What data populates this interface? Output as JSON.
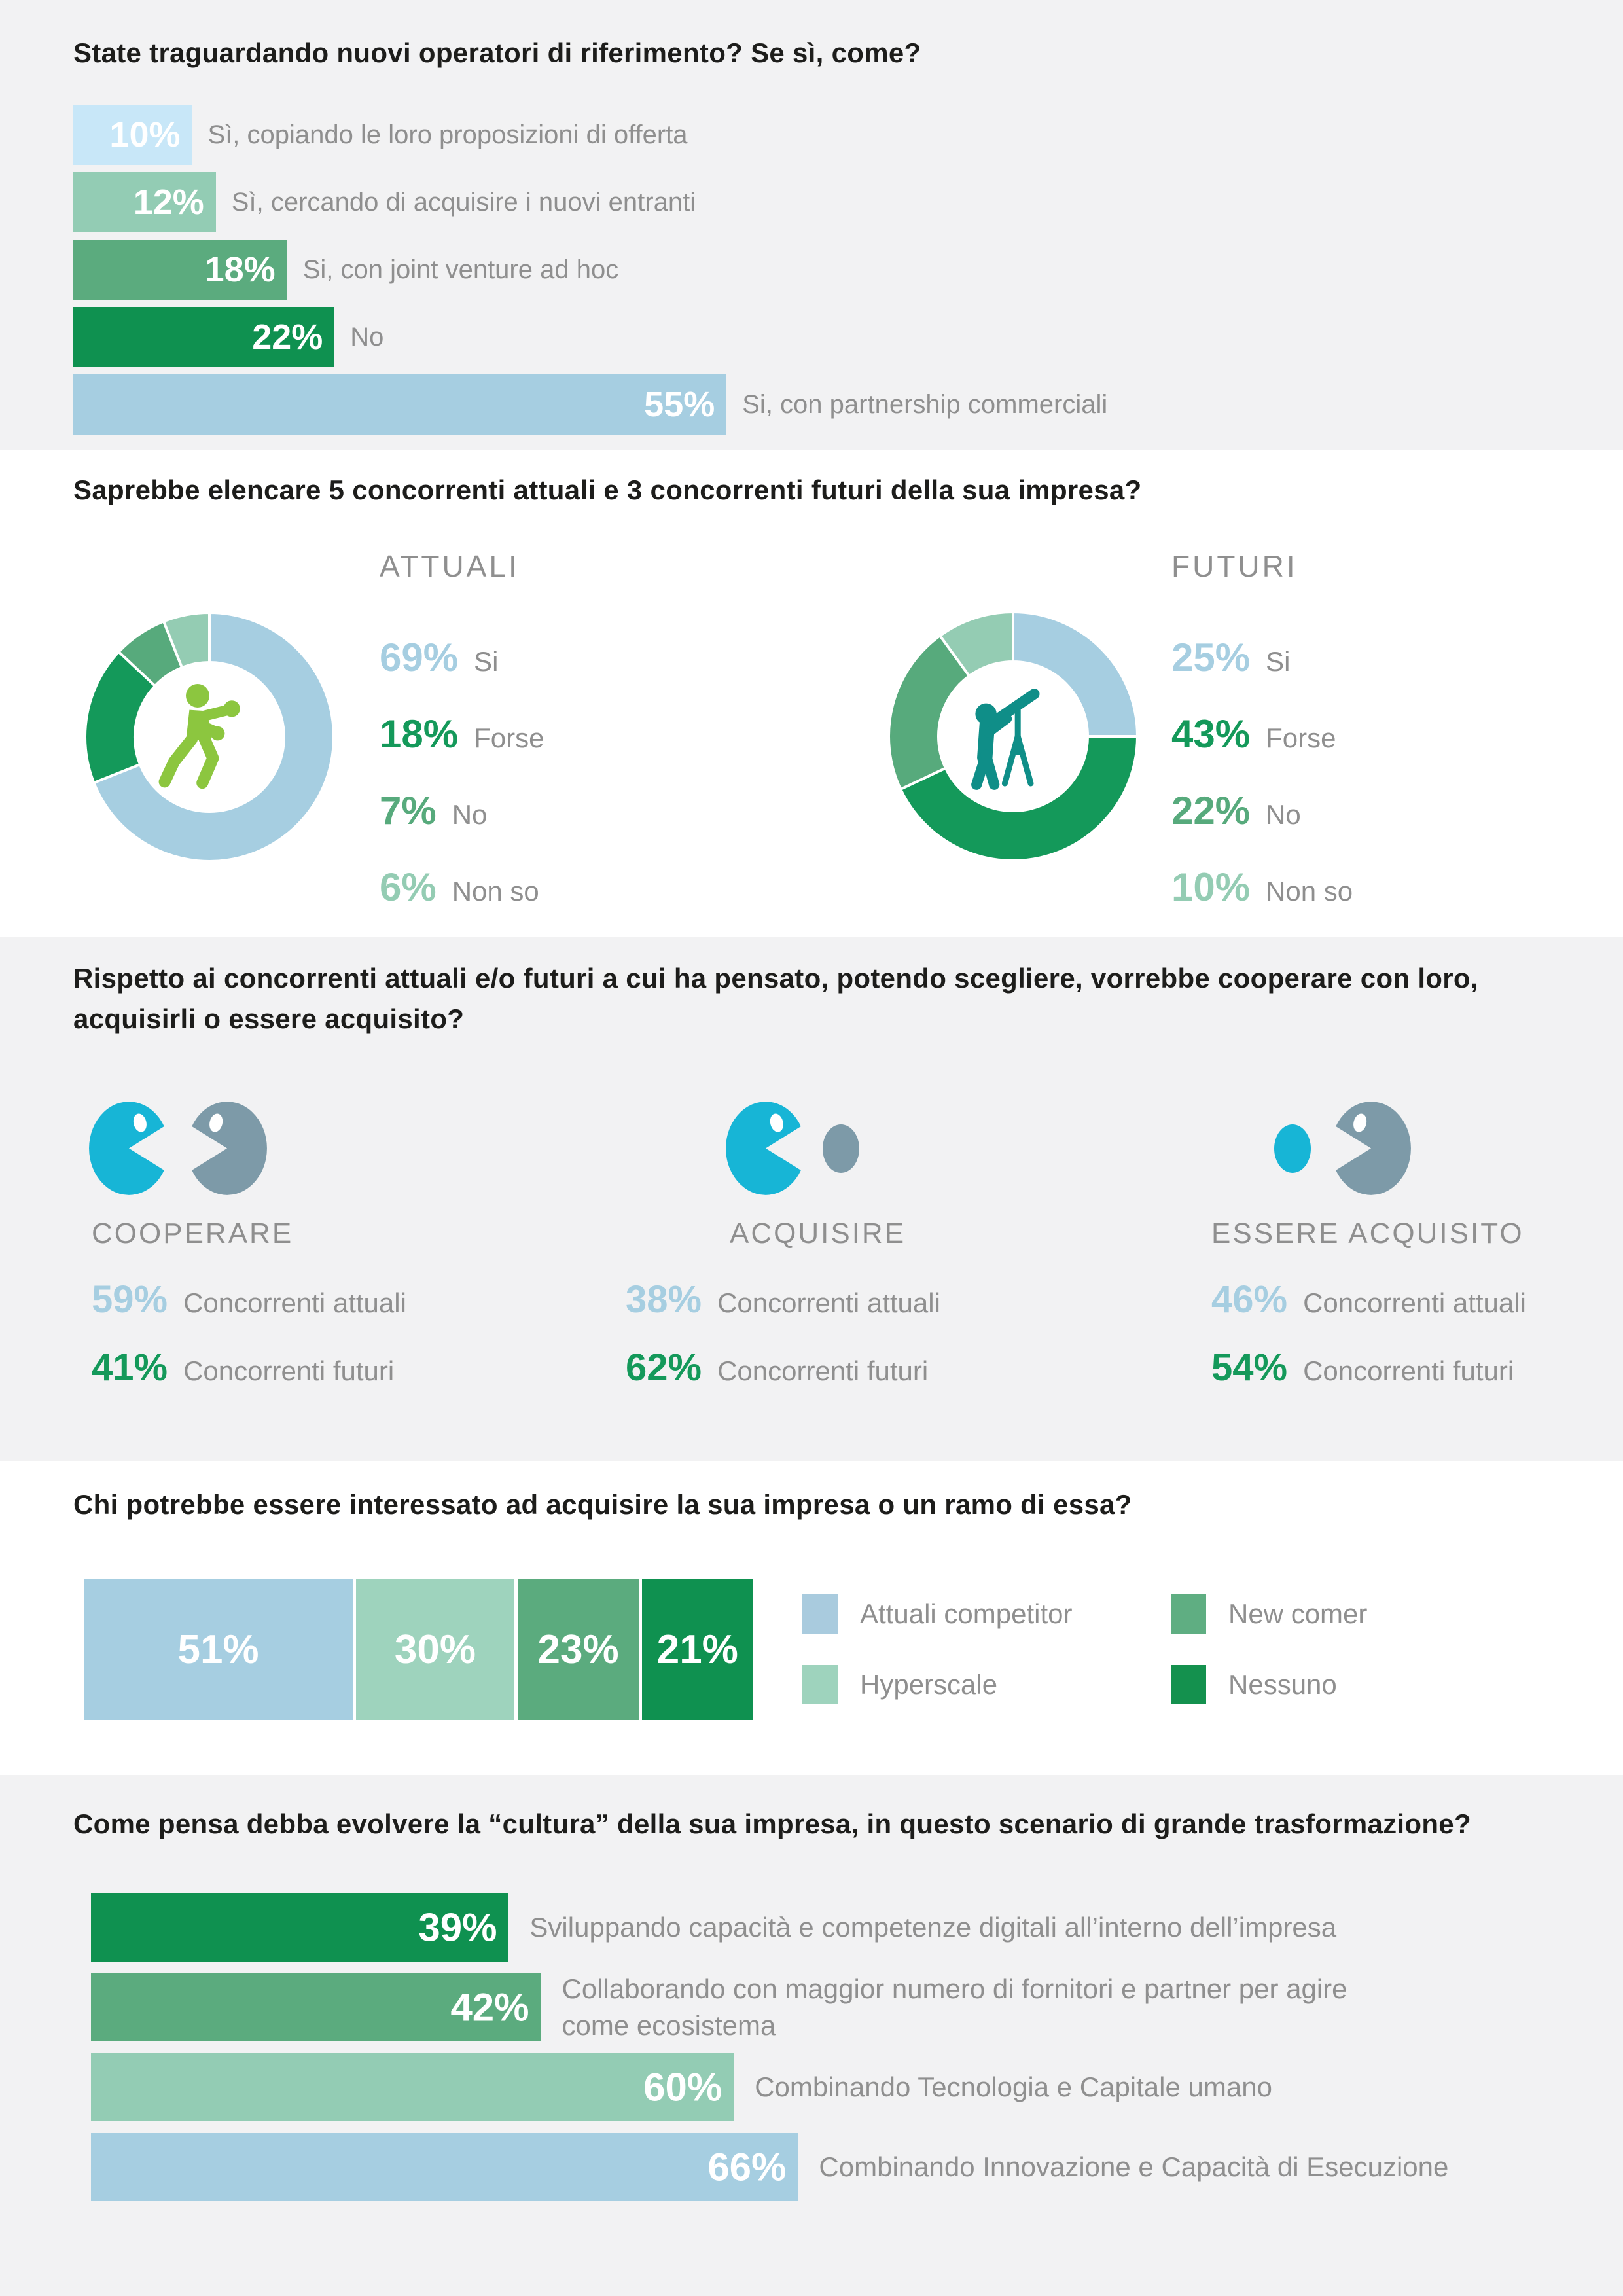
{
  "s1": {
    "title": "State traguardando nuovi operatori di riferimento? Se sì, come?",
    "bars": [
      {
        "value": 10,
        "label": "Sì, copiando le loro proposizioni di offerta",
        "color": "#c8e7f8"
      },
      {
        "value": 12,
        "label": "Sì, cercando di acquisire i nuovi entranti",
        "color": "#93ccb4"
      },
      {
        "value": 18,
        "label": "Si, con joint venture ad hoc",
        "color": "#5bab7e"
      },
      {
        "value": 22,
        "label": "No",
        "color": "#0f9150"
      },
      {
        "value": 55,
        "label": "Si, con partnership commerciali",
        "color": "#a6cee1"
      }
    ]
  },
  "s2": {
    "title": "Saprebbe elencare 5 concorrenti attuali e 3 concorrenti futuri della sua impresa?",
    "donuts": [
      {
        "name": "ATTUALI",
        "icon": "boxer-icon",
        "segments": [
          {
            "value": 69,
            "label": "Si",
            "color": "#a6cee1"
          },
          {
            "value": 18,
            "label": "Forse",
            "color": "#14995a"
          },
          {
            "value": 7,
            "label": "No",
            "color": "#57aa7c"
          },
          {
            "value": 6,
            "label": "Non so",
            "color": "#94ccb3"
          }
        ]
      },
      {
        "name": "FUTURI",
        "icon": "telescope-icon",
        "segments": [
          {
            "value": 25,
            "label": "Si",
            "color": "#a6cee1"
          },
          {
            "value": 43,
            "label": "Forse",
            "color": "#14995a"
          },
          {
            "value": 22,
            "label": "No",
            "color": "#57aa7c"
          },
          {
            "value": 10,
            "label": "Non so",
            "color": "#94ccb3"
          }
        ]
      }
    ]
  },
  "s3": {
    "title_line1": "Rispetto ai concorrenti attuali e/o futuri a cui ha pensato, potendo scegliere, vorrebbe cooperare con loro,",
    "title_line2": "acquisirli o essere acquisito?",
    "groups": [
      {
        "label": "COOPERARE",
        "icon": "pacman-vs-pacman-icon",
        "stats": [
          {
            "value": 59,
            "label": "Concorrenti attuali",
            "color": "#a6cee1"
          },
          {
            "value": 41,
            "label": "Concorrenti futuri",
            "color": "#14995a"
          }
        ]
      },
      {
        "label": "ACQUISIRE",
        "icon": "pacman-eats-dot-icon",
        "stats": [
          {
            "value": 38,
            "label": "Concorrenti attuali",
            "color": "#a6cee1"
          },
          {
            "value": 62,
            "label": "Concorrenti futuri",
            "color": "#14995a"
          }
        ]
      },
      {
        "label": "ESSERE ACQUISITO",
        "icon": "dot-eaten-by-pacman-icon",
        "stats": [
          {
            "value": 46,
            "label": "Concorrenti attuali",
            "color": "#a6cee1"
          },
          {
            "value": 54,
            "label": "Concorrenti futuri",
            "color": "#14995a"
          }
        ]
      }
    ]
  },
  "s4": {
    "title": "Chi potrebbe essere interessato ad acquisire la sua impresa o un ramo di essa?",
    "segments": [
      {
        "value": 51,
        "color": "#a6cee1"
      },
      {
        "value": 30,
        "color": "#9ed3bd"
      },
      {
        "value": 23,
        "color": "#5bab7e"
      },
      {
        "value": 21,
        "color": "#0f9150"
      }
    ],
    "legend": [
      {
        "label": "Attuali competitor",
        "color": "#a9cbde"
      },
      {
        "label": "New comer",
        "color": "#5fae82"
      },
      {
        "label": "Hyperscale",
        "color": "#9ed3bd"
      },
      {
        "label": "Nessuno",
        "color": "#14914e"
      }
    ]
  },
  "s5": {
    "title": "Come pensa debba evolvere la “cultura” della sua impresa, in questo scenario di grande trasformazione?",
    "bars": [
      {
        "value": 39,
        "color": "#0f9150",
        "label_lines": [
          "Sviluppando capacità e competenze digitali all’interno dell’impresa"
        ]
      },
      {
        "value": 42,
        "color": "#5bab7e",
        "label_lines": [
          "Collaborando con maggior numero di fornitori e partner  per agire",
          "come ecosistema"
        ]
      },
      {
        "value": 60,
        "color": "#93ccb4",
        "label_lines": [
          "Combinando Tecnologia e Capitale umano"
        ]
      },
      {
        "value": 66,
        "color": "#a6cee1",
        "label_lines": [
          "Combinando Innovazione e Capacità di Esecuzione"
        ]
      }
    ]
  },
  "chart_data": [
    {
      "type": "bar",
      "orientation": "horizontal",
      "unit": "%",
      "title": "State traguardando nuovi operatori di riferimento? Se sì, come?",
      "categories": [
        "Sì, copiando le loro proposizioni di offerta",
        "Sì, cercando di acquisire i nuovi entranti",
        "Si, con joint venture ad hoc",
        "No",
        "Si, con partnership commerciali"
      ],
      "values": [
        10,
        12,
        18,
        22,
        55
      ]
    },
    {
      "type": "pie",
      "title": "ATTUALI",
      "unit": "%",
      "categories": [
        "Si",
        "Forse",
        "No",
        "Non so"
      ],
      "values": [
        69,
        18,
        7,
        6
      ]
    },
    {
      "type": "pie",
      "title": "FUTURI",
      "unit": "%",
      "categories": [
        "Si",
        "Forse",
        "No",
        "Non so"
      ],
      "values": [
        25,
        43,
        22,
        10
      ]
    },
    {
      "type": "table",
      "title": "Rispetto ai concorrenti attuali e/o futuri a cui ha pensato, potendo scegliere, vorrebbe cooperare con loro, acquisirli o essere acquisito?",
      "columns": [
        "COOPERARE",
        "ACQUISIRE",
        "ESSERE ACQUISITO"
      ],
      "rows": [
        {
          "label": "Concorrenti attuali",
          "values": [
            59,
            38,
            46
          ]
        },
        {
          "label": "Concorrenti futuri",
          "values": [
            41,
            62,
            54
          ]
        }
      ],
      "unit": "%"
    },
    {
      "type": "bar",
      "orientation": "horizontal-stacked",
      "unit": "%",
      "title": "Chi potrebbe essere interessato ad acquisire la sua impresa o un ramo di essa?",
      "categories": [
        "Attuali competitor",
        "Hyperscale",
        "New comer",
        "Nessuno"
      ],
      "values": [
        51,
        30,
        23,
        21
      ]
    },
    {
      "type": "bar",
      "orientation": "horizontal",
      "unit": "%",
      "title": "Come pensa debba evolvere la “cultura” della sua impresa, in questo scenario di grande trasformazione?",
      "categories": [
        "Sviluppando capacità e competenze digitali all’interno dell’impresa",
        "Collaborando con maggior numero di fornitori e partner per agire come ecosistema",
        "Combinando Tecnologia e Capitale umano",
        "Combinando Innovazione e Capacità di Esecuzione"
      ],
      "values": [
        39,
        42,
        60,
        66
      ]
    }
  ]
}
